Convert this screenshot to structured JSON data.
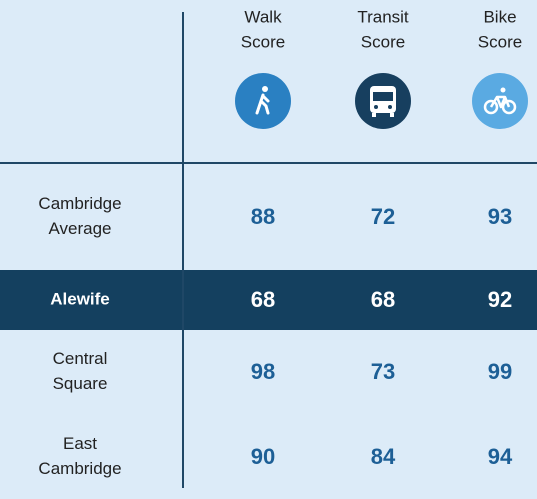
{
  "table": {
    "columns": [
      {
        "label": [
          "Walk",
          "Score"
        ]
      },
      {
        "label": [
          "Transit",
          "Score"
        ]
      },
      {
        "label": [
          "Bike",
          "Score"
        ]
      }
    ],
    "rows": [
      {
        "label": [
          "Cambridge",
          "Average"
        ],
        "values": [
          88,
          72,
          93
        ]
      },
      {
        "label": [
          "Alewife"
        ],
        "values": [
          68,
          68,
          92
        ],
        "highlighted": true
      },
      {
        "label": [
          "Central",
          "Square"
        ],
        "values": [
          98,
          73,
          99
        ]
      },
      {
        "label": [
          "East",
          "Cambridge"
        ],
        "values": [
          90,
          84,
          94
        ]
      }
    ]
  }
}
